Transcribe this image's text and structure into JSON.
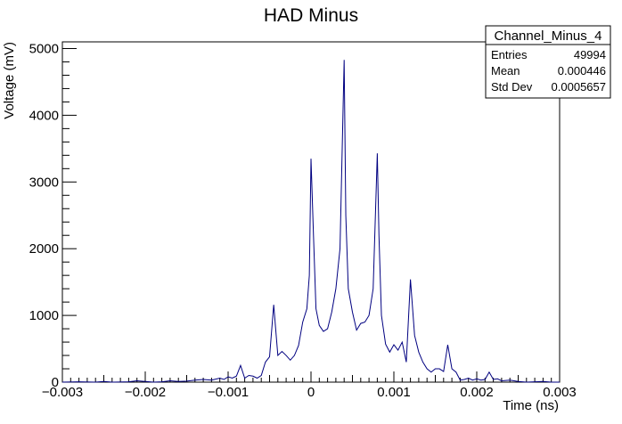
{
  "chart_data": {
    "type": "line",
    "title": "HAD Minus",
    "xlabel": "Time (ns)",
    "ylabel": "Voltage (mV)",
    "xlim": [
      -0.003,
      0.003
    ],
    "ylim": [
      0,
      5100
    ],
    "x_ticks": [
      "−0.003",
      "−0.002",
      "−0.001",
      "0",
      "0.001",
      "0.002",
      "0.003"
    ],
    "x_tick_values": [
      -0.003,
      -0.002,
      -0.001,
      0,
      0.001,
      0.002,
      0.003
    ],
    "y_ticks": [
      "0",
      "1000",
      "2000",
      "3000",
      "4000",
      "5000"
    ],
    "y_tick_values": [
      0,
      1000,
      2000,
      3000,
      4000,
      5000
    ],
    "line_color": "#000080",
    "grid": false,
    "stats_box": {
      "title": "Channel_Minus_4",
      "rows": [
        {
          "label": "Entries",
          "value": "49994"
        },
        {
          "label": "Mean",
          "value": "0.000446"
        },
        {
          "label": "Std Dev",
          "value": "0.0005657"
        }
      ]
    },
    "series": [
      {
        "x": [
          -0.003,
          -0.0028,
          -0.0026,
          -0.0025,
          -0.0024,
          -0.0022,
          -0.0021,
          -0.002,
          -0.0019,
          -0.0018,
          -0.0017,
          -0.0016,
          -0.0015,
          -0.0014,
          -0.0013,
          -0.0012,
          -0.0011,
          -0.00105,
          -0.001,
          -0.00095,
          -0.0009,
          -0.00085,
          -0.0008,
          -0.00075,
          -0.0007,
          -0.00065,
          -0.0006,
          -0.00055,
          -0.0005,
          -0.00045,
          -0.00042,
          -0.0004,
          -0.00035,
          -0.0003,
          -0.00025,
          -0.0002,
          -0.00015,
          -0.0001,
          -5e-05,
          -2e-05,
          0.0,
          3e-05,
          6e-05,
          0.0001,
          0.00015,
          0.0002,
          0.00025,
          0.0003,
          0.00035,
          0.0004,
          0.00042,
          0.00045,
          0.0005,
          0.00055,
          0.0006,
          0.00065,
          0.0007,
          0.00075,
          0.0008,
          0.00082,
          0.00085,
          0.0009,
          0.00095,
          0.001,
          0.00105,
          0.0011,
          0.00115,
          0.0012,
          0.00125,
          0.0013,
          0.00135,
          0.0014,
          0.00145,
          0.0015,
          0.00155,
          0.0016,
          0.00165,
          0.0017,
          0.00175,
          0.0018,
          0.00185,
          0.0019,
          0.00195,
          0.002,
          0.00205,
          0.0021,
          0.00215,
          0.0022,
          0.00225,
          0.0023,
          0.0024,
          0.0025,
          0.0026,
          0.0027,
          0.0028,
          0.0029,
          0.003
        ],
        "y": [
          0,
          5,
          0,
          10,
          0,
          5,
          20,
          10,
          0,
          5,
          20,
          10,
          15,
          30,
          40,
          30,
          60,
          40,
          80,
          60,
          90,
          250,
          60,
          100,
          90,
          60,
          100,
          300,
          380,
          1160,
          700,
          400,
          460,
          400,
          330,
          400,
          550,
          900,
          1100,
          1600,
          3350,
          2200,
          1100,
          850,
          760,
          800,
          1050,
          1400,
          2000,
          4830,
          2500,
          1400,
          1050,
          780,
          880,
          900,
          1000,
          1400,
          3430,
          2200,
          1000,
          570,
          450,
          560,
          480,
          600,
          300,
          1540,
          700,
          450,
          300,
          200,
          150,
          200,
          200,
          160,
          560,
          200,
          150,
          30,
          40,
          60,
          30,
          50,
          30,
          40,
          150,
          40,
          50,
          20,
          30,
          10,
          0,
          5,
          10,
          0,
          0
        ]
      }
    ]
  }
}
